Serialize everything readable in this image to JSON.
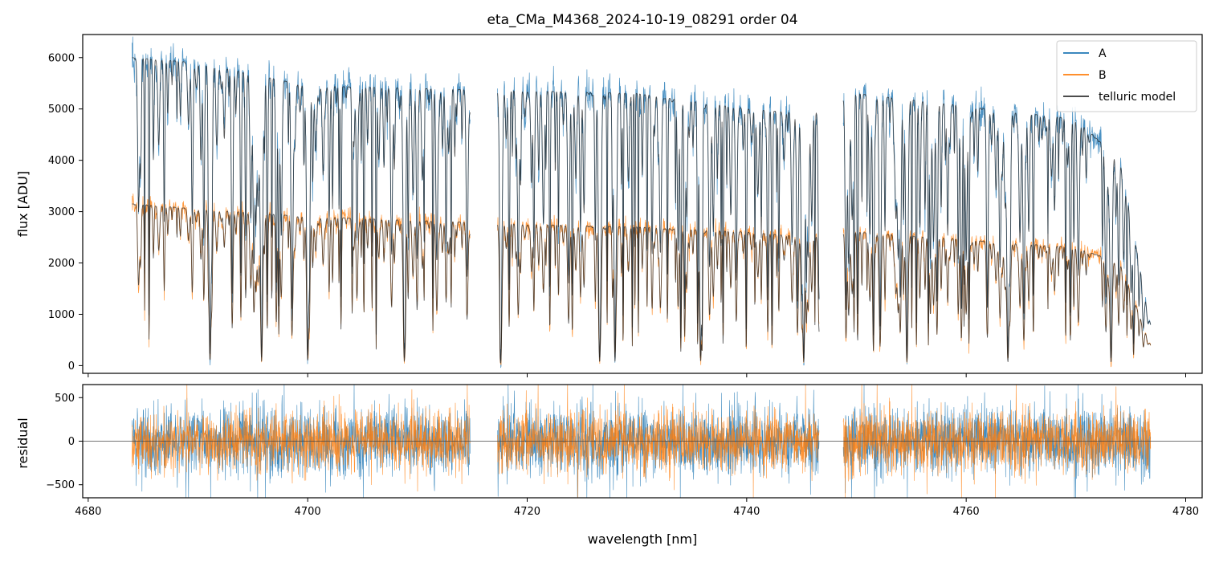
{
  "chart_data": {
    "type": "line",
    "title": "eta_CMa_M4368_2024-10-19_08291  order 04",
    "xlabel": "wavelength [nm]",
    "xlim": [
      4679.5,
      4781.5
    ],
    "x_ticks": [
      4680,
      4700,
      4720,
      4740,
      4760,
      4780
    ],
    "segments": [
      [
        4684.0,
        4714.8
      ],
      [
        4717.3,
        4746.6
      ],
      [
        4748.8,
        4776.8
      ]
    ],
    "legend": {
      "position": "top-right",
      "entries": [
        {
          "label": "A",
          "color": "#1f77b4"
        },
        {
          "label": "B",
          "color": "#ff7f0e"
        },
        {
          "label": "telluric model",
          "color": "#333333"
        }
      ]
    },
    "panels": [
      {
        "id": "flux",
        "ylabel": "flux [ADU]",
        "ylim": [
          -150,
          6450
        ],
        "y_ticks": [
          0,
          1000,
          2000,
          3000,
          4000,
          5000,
          6000
        ],
        "series": [
          {
            "name": "A",
            "color": "#1f77b4",
            "continuum": [
              [
                4684,
                6000
              ],
              [
                4690,
                5900
              ],
              [
                4700,
                5450
              ],
              [
                4720,
                5350
              ],
              [
                4730,
                5300
              ],
              [
                4740,
                5000
              ],
              [
                4746,
                4900
              ],
              [
                4750,
                5300
              ],
              [
                4760,
                5050
              ],
              [
                4770,
                4800
              ],
              [
                4774,
                4000
              ],
              [
                4776.8,
                800
              ]
            ]
          },
          {
            "name": "B",
            "color": "#ff7f0e",
            "continuum": [
              [
                4684,
                3150
              ],
              [
                4690,
                3050
              ],
              [
                4700,
                2900
              ],
              [
                4720,
                2750
              ],
              [
                4730,
                2700
              ],
              [
                4740,
                2600
              ],
              [
                4746,
                2500
              ],
              [
                4750,
                2600
              ],
              [
                4760,
                2450
              ],
              [
                4770,
                2300
              ],
              [
                4774,
                2000
              ],
              [
                4776.8,
                400
              ]
            ]
          }
        ],
        "deep_lines_nm": [
          4691.1,
          4695.8,
          4700.0,
          4708.8,
          4717.6,
          4726.6,
          4728.0,
          4735.8,
          4745.2,
          4754.6,
          4763.8,
          4773.2
        ]
      },
      {
        "id": "residual",
        "ylabel": "residual",
        "ylim": [
          -650,
          650
        ],
        "y_ticks": [
          -500,
          0,
          500
        ],
        "series": [
          {
            "name": "A",
            "color": "#1f77b4",
            "noise_sigma": 200
          },
          {
            "name": "B",
            "color": "#ff7f0e",
            "noise_sigma": 170
          }
        ]
      }
    ]
  }
}
